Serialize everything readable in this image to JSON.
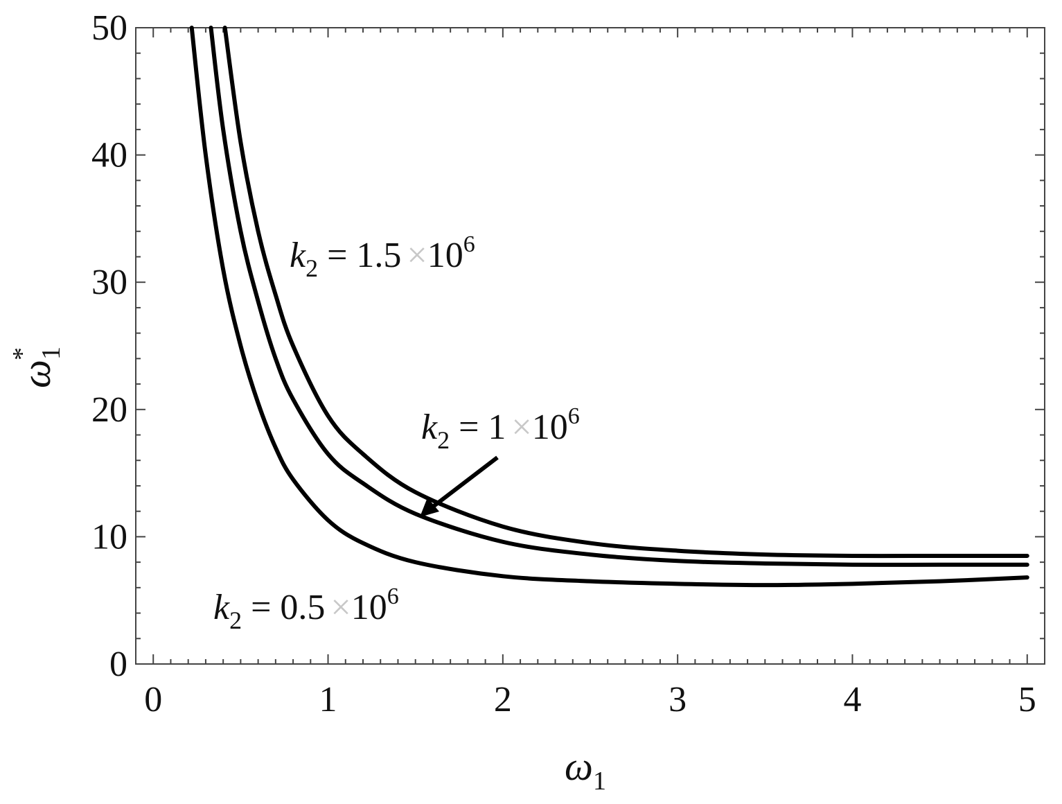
{
  "chart_data": {
    "type": "line",
    "title": "",
    "xlabel": "ω",
    "xlabel_sub": "1",
    "ylabel": "ω",
    "ylabel_sub": "1",
    "ylabel_sup": "*",
    "xlim": [
      -0.1,
      5.1
    ],
    "ylim": [
      0,
      50
    ],
    "x_ticks": [
      0,
      1,
      2,
      3,
      4,
      5
    ],
    "y_ticks": [
      0,
      10,
      20,
      30,
      40,
      50
    ],
    "x_tick_labels": [
      "0",
      "1",
      "2",
      "3",
      "4",
      "5"
    ],
    "y_tick_labels": [
      "0",
      "10",
      "20",
      "30",
      "40",
      "50"
    ],
    "grid": false,
    "series": [
      {
        "k_value": "0.5",
        "x": [
          0.22,
          0.3,
          0.4,
          0.5,
          0.6,
          0.7,
          0.8,
          1.0,
          1.2,
          1.5,
          2.0,
          2.5,
          3.0,
          3.5,
          4.0,
          4.5,
          5.0
        ],
        "y": [
          50,
          40,
          31,
          25,
          20.5,
          17,
          14.5,
          11.3,
          9.5,
          8.0,
          6.9,
          6.5,
          6.3,
          6.2,
          6.3,
          6.5,
          6.8
        ]
      },
      {
        "k_value": "1",
        "x": [
          0.33,
          0.4,
          0.5,
          0.6,
          0.7,
          0.8,
          1.0,
          1.2,
          1.5,
          2.0,
          2.5,
          3.0,
          3.5,
          4.0,
          4.5,
          5.0
        ],
        "y": [
          50,
          42,
          34,
          28.5,
          24,
          20.8,
          16.5,
          14.2,
          11.8,
          9.6,
          8.6,
          8.1,
          7.9,
          7.8,
          7.8,
          7.8
        ]
      },
      {
        "k_value": "1.5",
        "x": [
          0.41,
          0.5,
          0.6,
          0.7,
          0.8,
          1.0,
          1.2,
          1.5,
          2.0,
          2.5,
          3.0,
          3.5,
          4.0,
          4.5,
          5.0
        ],
        "y": [
          50,
          41,
          34,
          29,
          25,
          19.5,
          16.5,
          13.5,
          10.8,
          9.5,
          8.9,
          8.6,
          8.5,
          8.5,
          8.5
        ]
      }
    ],
    "annotations": [
      {
        "k": "k",
        "k_sub": "2",
        "text": " = 1.5",
        "times": "×",
        "base": "10",
        "exp": "6"
      },
      {
        "k": "k",
        "k_sub": "2",
        "text": " = 1",
        "times": "×",
        "base": "10",
        "exp": "6"
      },
      {
        "k": "k",
        "k_sub": "2",
        "text": " = 0.5",
        "times": "×",
        "base": "10",
        "exp": "6"
      }
    ]
  }
}
